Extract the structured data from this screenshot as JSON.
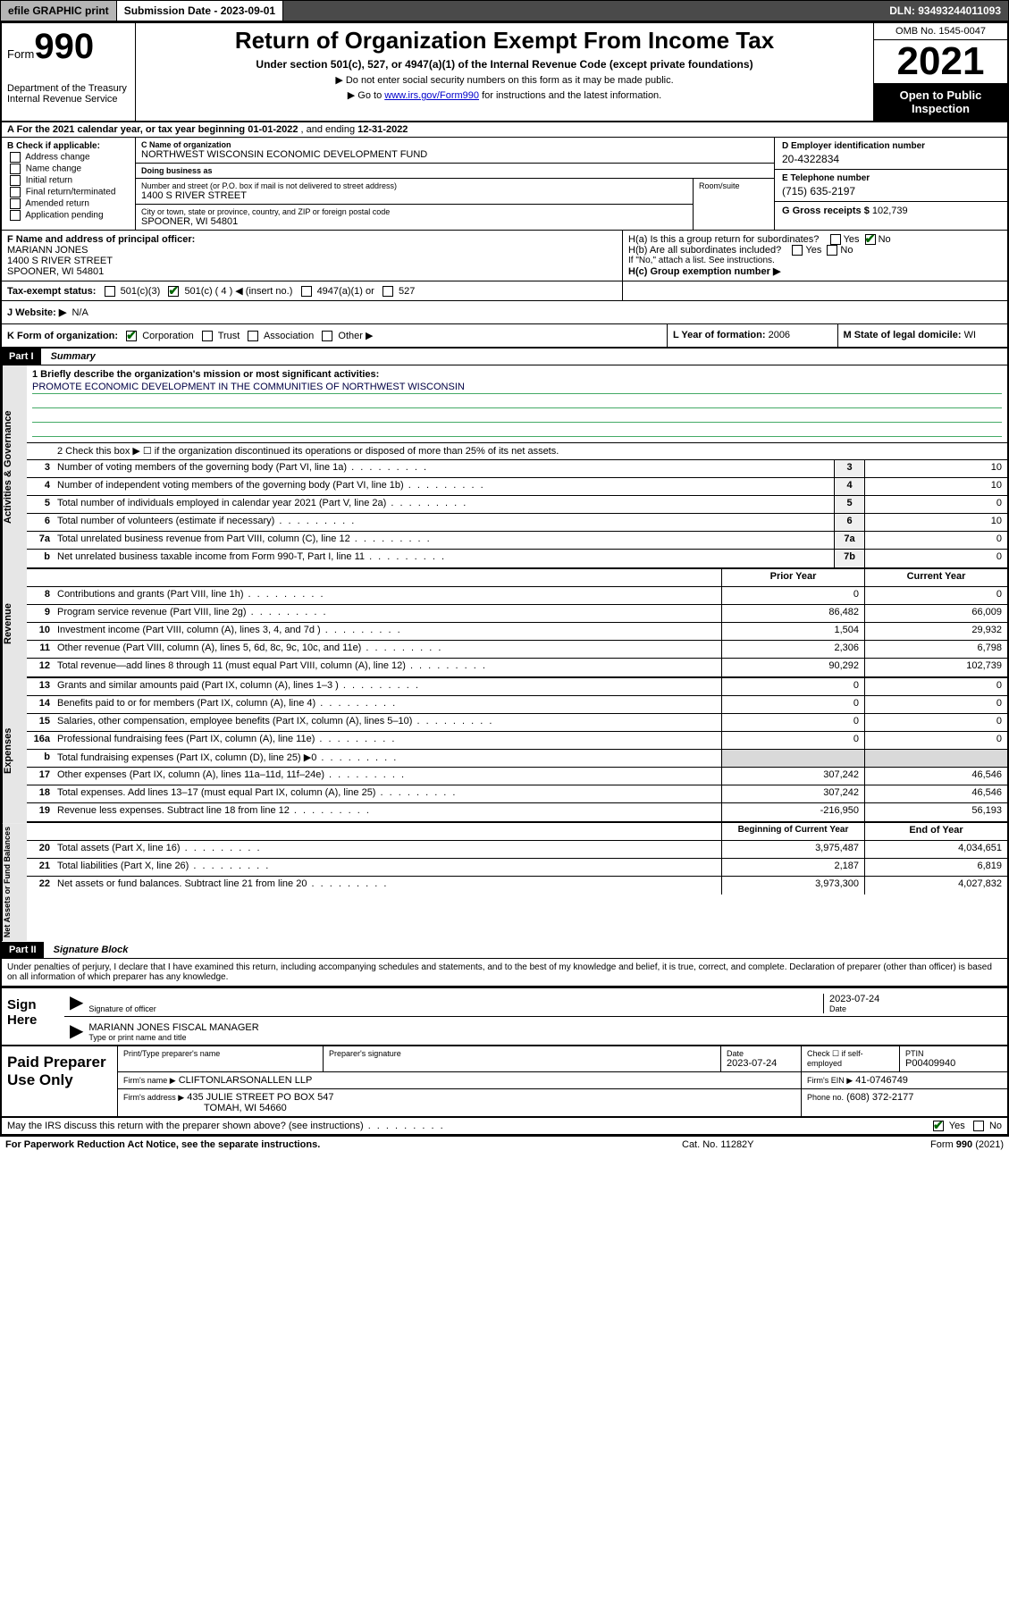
{
  "topbar": {
    "efile": "efile GRAPHIC print",
    "submission": "Submission Date - 2023-09-01",
    "dln": "DLN: 93493244011093"
  },
  "header": {
    "form_label": "Form",
    "form_number": "990",
    "dept": "Department of the Treasury\nInternal Revenue Service",
    "title": "Return of Organization Exempt From Income Tax",
    "subtitle": "Under section 501(c), 527, or 4947(a)(1) of the Internal Revenue Code (except private foundations)",
    "note1": "Do not enter social security numbers on this form as it may be made public.",
    "note2_pre": "Go to ",
    "note2_link": "www.irs.gov/Form990",
    "note2_post": " for instructions and the latest information.",
    "omb": "OMB No. 1545-0047",
    "year": "2021",
    "open": "Open to Public Inspection"
  },
  "lineA": {
    "pre": "A For the 2021 calendar year, or tax year beginning ",
    "begin": "01-01-2022",
    "mid": " , and ending ",
    "end": "12-31-2022"
  },
  "B": {
    "hdr": "B Check if applicable:",
    "opts": [
      "Address change",
      "Name change",
      "Initial return",
      "Final return/terminated",
      "Amended return",
      "Application pending"
    ]
  },
  "C": {
    "name_lbl": "C Name of organization",
    "name": "NORTHWEST WISCONSIN ECONOMIC DEVELOPMENT FUND",
    "dba_lbl": "Doing business as",
    "dba": "",
    "street_lbl": "Number and street (or P.O. box if mail is not delivered to street address)",
    "street": "1400 S RIVER STREET",
    "room_lbl": "Room/suite",
    "city_lbl": "City or town, state or province, country, and ZIP or foreign postal code",
    "city": "SPOONER, WI  54801"
  },
  "D": {
    "ein_lbl": "D Employer identification number",
    "ein": "20-4322834",
    "phone_lbl": "E Telephone number",
    "phone": "(715) 635-2197",
    "gross_lbl": "G Gross receipts $",
    "gross": "102,739"
  },
  "F": {
    "lbl": "F Name and address of principal officer:",
    "name": "MARIANN JONES",
    "addr1": "1400 S RIVER STREET",
    "addr2": "SPOONER, WI  54801"
  },
  "H": {
    "a_lbl": "H(a)  Is this a group return for subordinates?",
    "b_lbl": "H(b)  Are all subordinates included?",
    "b_note": "If \"No,\" attach a list. See instructions.",
    "c_lbl": "H(c)  Group exemption number ▶",
    "yes": "Yes",
    "no": "No"
  },
  "I": {
    "lbl": "Tax-exempt status:",
    "o1": "501(c)(3)",
    "o2": "501(c) ( 4 ) ◀ (insert no.)",
    "o3": "4947(a)(1) or",
    "o4": "527"
  },
  "J": {
    "lbl": "J   Website: ▶",
    "val": "N/A"
  },
  "K": {
    "lbl": "K Form of organization:",
    "opts": [
      "Corporation",
      "Trust",
      "Association",
      "Other ▶"
    ]
  },
  "L": {
    "lbl": "L Year of formation:",
    "val": "2006"
  },
  "M": {
    "lbl": "M State of legal domicile:",
    "val": "WI"
  },
  "partI": {
    "hdr": "Part I",
    "title": "Summary",
    "sections": {
      "gov": {
        "label": "Activities & Governance",
        "mission_lbl": "1   Briefly describe the organization's mission or most significant activities:",
        "mission": "PROMOTE ECONOMIC DEVELOPMENT IN THE COMMUNITIES OF NORTHWEST WISCONSIN",
        "line2": "2   Check this box ▶ ☐  if the organization discontinued its operations or disposed of more than 25% of its net assets.",
        "rows": [
          {
            "n": "3",
            "d": "Number of voting members of the governing body (Part VI, line 1a)",
            "box": "3",
            "v": "10"
          },
          {
            "n": "4",
            "d": "Number of independent voting members of the governing body (Part VI, line 1b)",
            "box": "4",
            "v": "10"
          },
          {
            "n": "5",
            "d": "Total number of individuals employed in calendar year 2021 (Part V, line 2a)",
            "box": "5",
            "v": "0"
          },
          {
            "n": "6",
            "d": "Total number of volunteers (estimate if necessary)",
            "box": "6",
            "v": "10"
          },
          {
            "n": "7a",
            "d": "Total unrelated business revenue from Part VIII, column (C), line 12",
            "box": "7a",
            "v": "0"
          },
          {
            "n": "b",
            "d": "Net unrelated business taxable income from Form 990-T, Part I, line 11",
            "box": "7b",
            "v": "0"
          }
        ]
      },
      "rev": {
        "label": "Revenue",
        "hdr_prior": "Prior Year",
        "hdr_curr": "Current Year",
        "rows": [
          {
            "n": "8",
            "d": "Contributions and grants (Part VIII, line 1h)",
            "p": "0",
            "c": "0"
          },
          {
            "n": "9",
            "d": "Program service revenue (Part VIII, line 2g)",
            "p": "86,482",
            "c": "66,009"
          },
          {
            "n": "10",
            "d": "Investment income (Part VIII, column (A), lines 3, 4, and 7d )",
            "p": "1,504",
            "c": "29,932"
          },
          {
            "n": "11",
            "d": "Other revenue (Part VIII, column (A), lines 5, 6d, 8c, 9c, 10c, and 11e)",
            "p": "2,306",
            "c": "6,798"
          },
          {
            "n": "12",
            "d": "Total revenue—add lines 8 through 11 (must equal Part VIII, column (A), line 12)",
            "p": "90,292",
            "c": "102,739"
          }
        ]
      },
      "exp": {
        "label": "Expenses",
        "rows": [
          {
            "n": "13",
            "d": "Grants and similar amounts paid (Part IX, column (A), lines 1–3 )",
            "p": "0",
            "c": "0"
          },
          {
            "n": "14",
            "d": "Benefits paid to or for members (Part IX, column (A), line 4)",
            "p": "0",
            "c": "0"
          },
          {
            "n": "15",
            "d": "Salaries, other compensation, employee benefits (Part IX, column (A), lines 5–10)",
            "p": "0",
            "c": "0"
          },
          {
            "n": "16a",
            "d": "Professional fundraising fees (Part IX, column (A), line 11e)",
            "p": "0",
            "c": "0"
          },
          {
            "n": "b",
            "d": "Total fundraising expenses (Part IX, column (D), line 25) ▶0",
            "p": "",
            "c": "",
            "shade": true
          },
          {
            "n": "17",
            "d": "Other expenses (Part IX, column (A), lines 11a–11d, 11f–24e)",
            "p": "307,242",
            "c": "46,546"
          },
          {
            "n": "18",
            "d": "Total expenses. Add lines 13–17 (must equal Part IX, column (A), line 25)",
            "p": "307,242",
            "c": "46,546"
          },
          {
            "n": "19",
            "d": "Revenue less expenses. Subtract line 18 from line 12",
            "p": "-216,950",
            "c": "56,193"
          }
        ]
      },
      "net": {
        "label": "Net Assets or Fund Balances",
        "hdr_beg": "Beginning of Current Year",
        "hdr_end": "End of Year",
        "rows": [
          {
            "n": "20",
            "d": "Total assets (Part X, line 16)",
            "p": "3,975,487",
            "c": "4,034,651"
          },
          {
            "n": "21",
            "d": "Total liabilities (Part X, line 26)",
            "p": "2,187",
            "c": "6,819"
          },
          {
            "n": "22",
            "d": "Net assets or fund balances. Subtract line 21 from line 20",
            "p": "3,973,300",
            "c": "4,027,832"
          }
        ]
      }
    }
  },
  "partII": {
    "hdr": "Part II",
    "title": "Signature Block",
    "declare": "Under penalties of perjury, I declare that I have examined this return, including accompanying schedules and statements, and to the best of my knowledge and belief, it is true, correct, and complete. Declaration of preparer (other than officer) is based on all information of which preparer has any knowledge.",
    "sign_here": "Sign Here",
    "sig_officer_lbl": "Signature of officer",
    "sig_date": "2023-07-24",
    "date_lbl": "Date",
    "name_title": "MARIANN JONES FISCAL MANAGER",
    "name_title_lbl": "Type or print name and title",
    "paid": "Paid Preparer Use Only",
    "prep_name_lbl": "Print/Type preparer's name",
    "prep_sig_lbl": "Preparer's signature",
    "prep_date_lbl": "Date",
    "prep_date": "2023-07-24",
    "check_lbl": "Check ☐ if self-employed",
    "ptin_lbl": "PTIN",
    "ptin": "P00409940",
    "firm_name_lbl": "Firm's name    ▶",
    "firm_name": "CLIFTONLARSONALLEN LLP",
    "firm_ein_lbl": "Firm's EIN ▶",
    "firm_ein": "41-0746749",
    "firm_addr_lbl": "Firm's address ▶",
    "firm_addr": "435 JULIE STREET PO BOX 547",
    "firm_city": "TOMAH, WI  54660",
    "firm_phone_lbl": "Phone no.",
    "firm_phone": "(608) 372-2177",
    "may": "May the IRS discuss this return with the preparer shown above? (see instructions)"
  },
  "footer": {
    "l": "For Paperwork Reduction Act Notice, see the separate instructions.",
    "m": "Cat. No. 11282Y",
    "r": "Form 990 (2021)"
  }
}
